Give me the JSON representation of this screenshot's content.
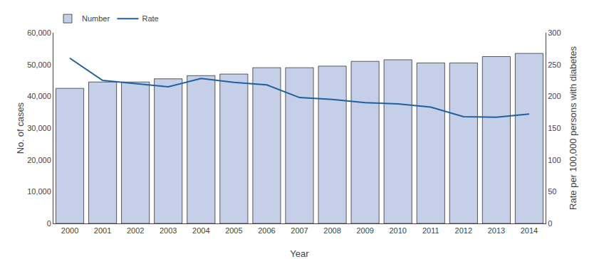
{
  "chart_data": {
    "type": "bar",
    "x": [
      2000,
      2001,
      2002,
      2003,
      2004,
      2005,
      2006,
      2007,
      2008,
      2009,
      2010,
      2011,
      2012,
      2013,
      2014
    ],
    "series": [
      {
        "name": "Number",
        "type": "bar",
        "color": "#c5cfe8",
        "values": [
          42500,
          44500,
          44500,
          45500,
          46500,
          47000,
          49000,
          49000,
          49500,
          51000,
          51500,
          50500,
          50500,
          52500,
          53500
        ]
      },
      {
        "name": "Rate",
        "type": "line",
        "axis": "y2",
        "color": "#2060a0",
        "values": [
          260,
          225,
          220,
          215,
          228,
          222,
          218,
          198,
          195,
          190,
          188,
          183,
          168,
          167,
          172
        ]
      }
    ],
    "xlabel": "Year",
    "ylabel": "No. of cases",
    "y2label": "Rate per 100,000 persons with diabetes",
    "xlim": [
      1999.5,
      2014.5
    ],
    "xticks": [
      2000,
      2001,
      2002,
      2003,
      2004,
      2005,
      2006,
      2007,
      2008,
      2009,
      2010,
      2011,
      2012,
      2013,
      2014
    ],
    "ylim": [
      0,
      60000
    ],
    "yticks": [
      0,
      {
        "value": 10000,
        "label": "10,000"
      },
      {
        "value": 20000,
        "label": "20,000"
      },
      {
        "value": 30000,
        "label": "30,000"
      },
      {
        "value": 40000,
        "label": "40,000"
      },
      {
        "value": 50000,
        "label": "50,000"
      },
      {
        "value": 60000,
        "label": "60,000"
      }
    ],
    "y2lim": [
      0,
      300
    ],
    "y2ticks": [
      0,
      50,
      100,
      150,
      200,
      250,
      300
    ],
    "grid": false,
    "legend": "upper left"
  }
}
